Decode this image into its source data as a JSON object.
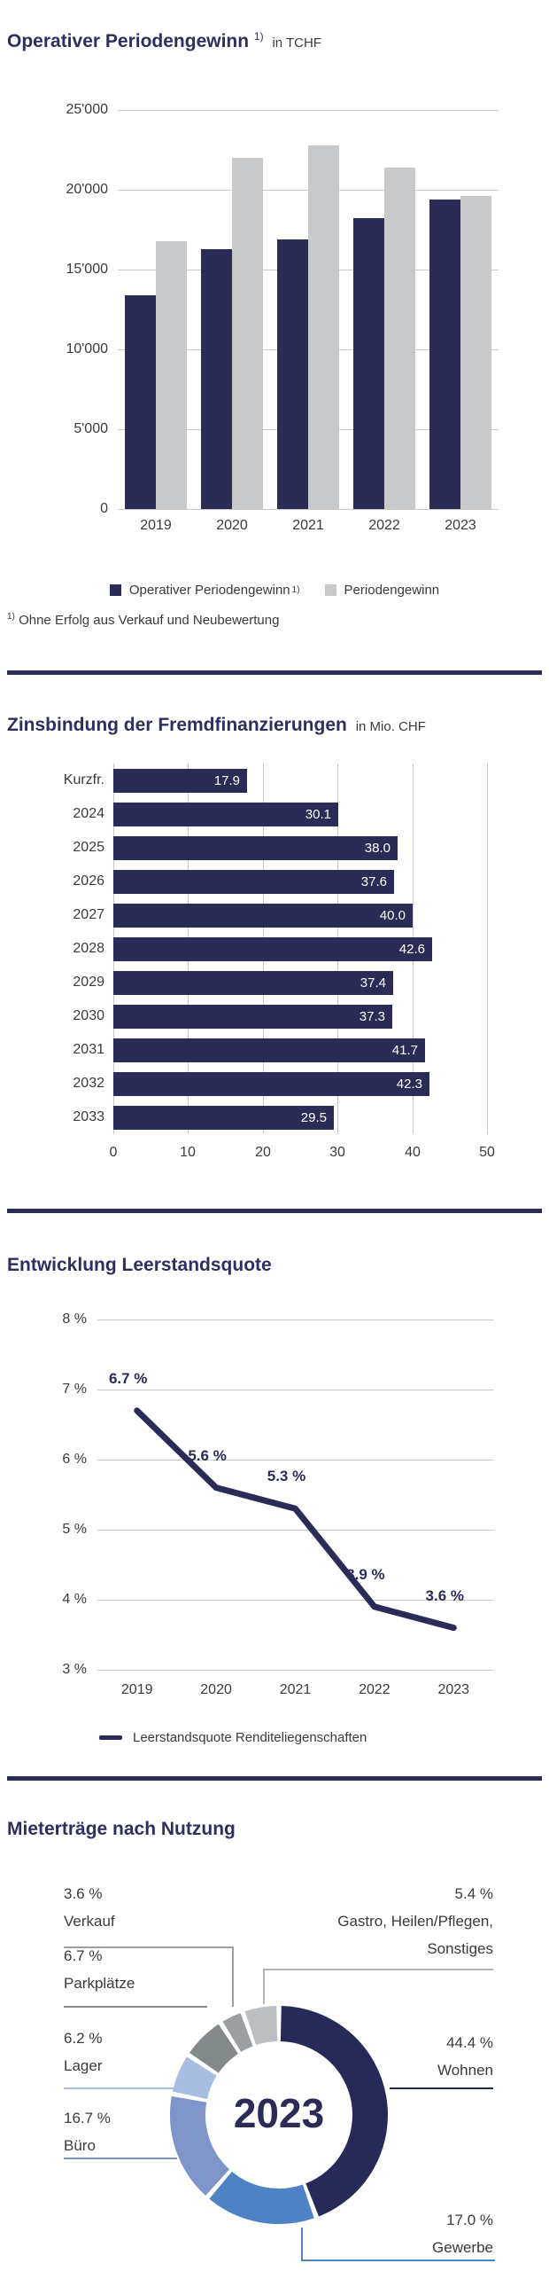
{
  "page": {
    "background": "#ffffff",
    "divider_color": "#2b2b58",
    "navy": "#2b2b58",
    "gray": "#c8c9cb"
  },
  "chart_data": [
    {
      "id": "operativer-periodengewinn",
      "type": "bar",
      "title": "Operativer Periodengewinn",
      "title_sup": "1)",
      "unit": "in TCHF",
      "categories": [
        "2019",
        "2020",
        "2021",
        "2022",
        "2023"
      ],
      "series": [
        {
          "name": "Operativer Periodengewinn",
          "name_sup": "1)",
          "color": "#2b2b58",
          "values": [
            13400,
            16300,
            16900,
            18200,
            19400
          ]
        },
        {
          "name": "Periodengewinn",
          "name_sup": "",
          "color": "#c8c9cb",
          "values": [
            16800,
            22000,
            22800,
            21400,
            19600
          ]
        }
      ],
      "ylim": [
        0,
        25000
      ],
      "yticks": [
        "25'000",
        "20'000",
        "15'000",
        "10'000",
        "5'000",
        "0"
      ],
      "grid": "horizontal",
      "legend_position": "bottom",
      "footnote_sup": "1)",
      "footnote": "Ohne Erfolg aus Verkauf und Neubewertung"
    },
    {
      "id": "zinsbindung-fremdfinanzierungen",
      "type": "bar",
      "orientation": "horizontal",
      "title": "Zinsbindung der Fremdfinanzierungen",
      "unit": "in Mio. CHF",
      "categories": [
        "Kurzfr.",
        "2024",
        "2025",
        "2026",
        "2027",
        "2028",
        "2029",
        "2030",
        "2031",
        "2032",
        "2033"
      ],
      "values": [
        17.9,
        30.1,
        38.0,
        37.6,
        40.0,
        42.6,
        37.4,
        37.3,
        41.7,
        42.3,
        29.5
      ],
      "value_labels": [
        "17.9",
        "30.1",
        "38.0",
        "37.6",
        "40.0",
        "42.6",
        "37.4",
        "37.3",
        "41.7",
        "42.3",
        "29.5"
      ],
      "bar_color": "#2b2b58",
      "xlim": [
        0,
        50
      ],
      "xticks": [
        0,
        10,
        20,
        30,
        40,
        50
      ],
      "grid": "vertical"
    },
    {
      "id": "entwicklung-leerstandsquote",
      "type": "line",
      "title": "Entwicklung Leerstandsquote",
      "categories": [
        "2019",
        "2020",
        "2021",
        "2022",
        "2023"
      ],
      "values": [
        6.7,
        5.6,
        5.3,
        3.9,
        3.6
      ],
      "point_labels": [
        "6.7 %",
        "5.6 %",
        "5.3 %",
        "3.9 %",
        "3.6 %"
      ],
      "line_color": "#2b2b58",
      "ylim": [
        3,
        8
      ],
      "yticks": [
        "8 %",
        "7 %",
        "6 %",
        "5 %",
        "4 %",
        "3 %"
      ],
      "grid": "horizontal",
      "legend": "Leerstandsquote Renditeliegenschaften",
      "legend_position": "bottom"
    },
    {
      "id": "mietertraege-nach-nutzung",
      "type": "pie",
      "subtype": "donut",
      "title": "Mieterträge nach Nutzung",
      "center_label": "2023",
      "segments": [
        {
          "name": "Wohnen",
          "value": 44.4,
          "label_value": "44.4 %",
          "color": "#272a58"
        },
        {
          "name": "Gewerbe",
          "value": 17.0,
          "label_value": "17.0 %",
          "color": "#4d82c4"
        },
        {
          "name": "Büro",
          "value": 16.7,
          "label_value": "16.7 %",
          "color": "#7d95c8"
        },
        {
          "name": "Lager",
          "value": 6.2,
          "label_value": "6.2 %",
          "color": "#a9bce2"
        },
        {
          "name": "Parkplätze",
          "value": 6.7,
          "label_value": "6.7 %",
          "color": "#83898b"
        },
        {
          "name": "Verkauf",
          "value": 3.6,
          "label_value": "3.6 %",
          "color": "#9aa0a2"
        },
        {
          "name": "Gastro, Heilen/Pflegen,\nSonstiges",
          "value": 5.4,
          "label_value": "5.4 %",
          "color": "#bcbfc1"
        }
      ]
    }
  ]
}
